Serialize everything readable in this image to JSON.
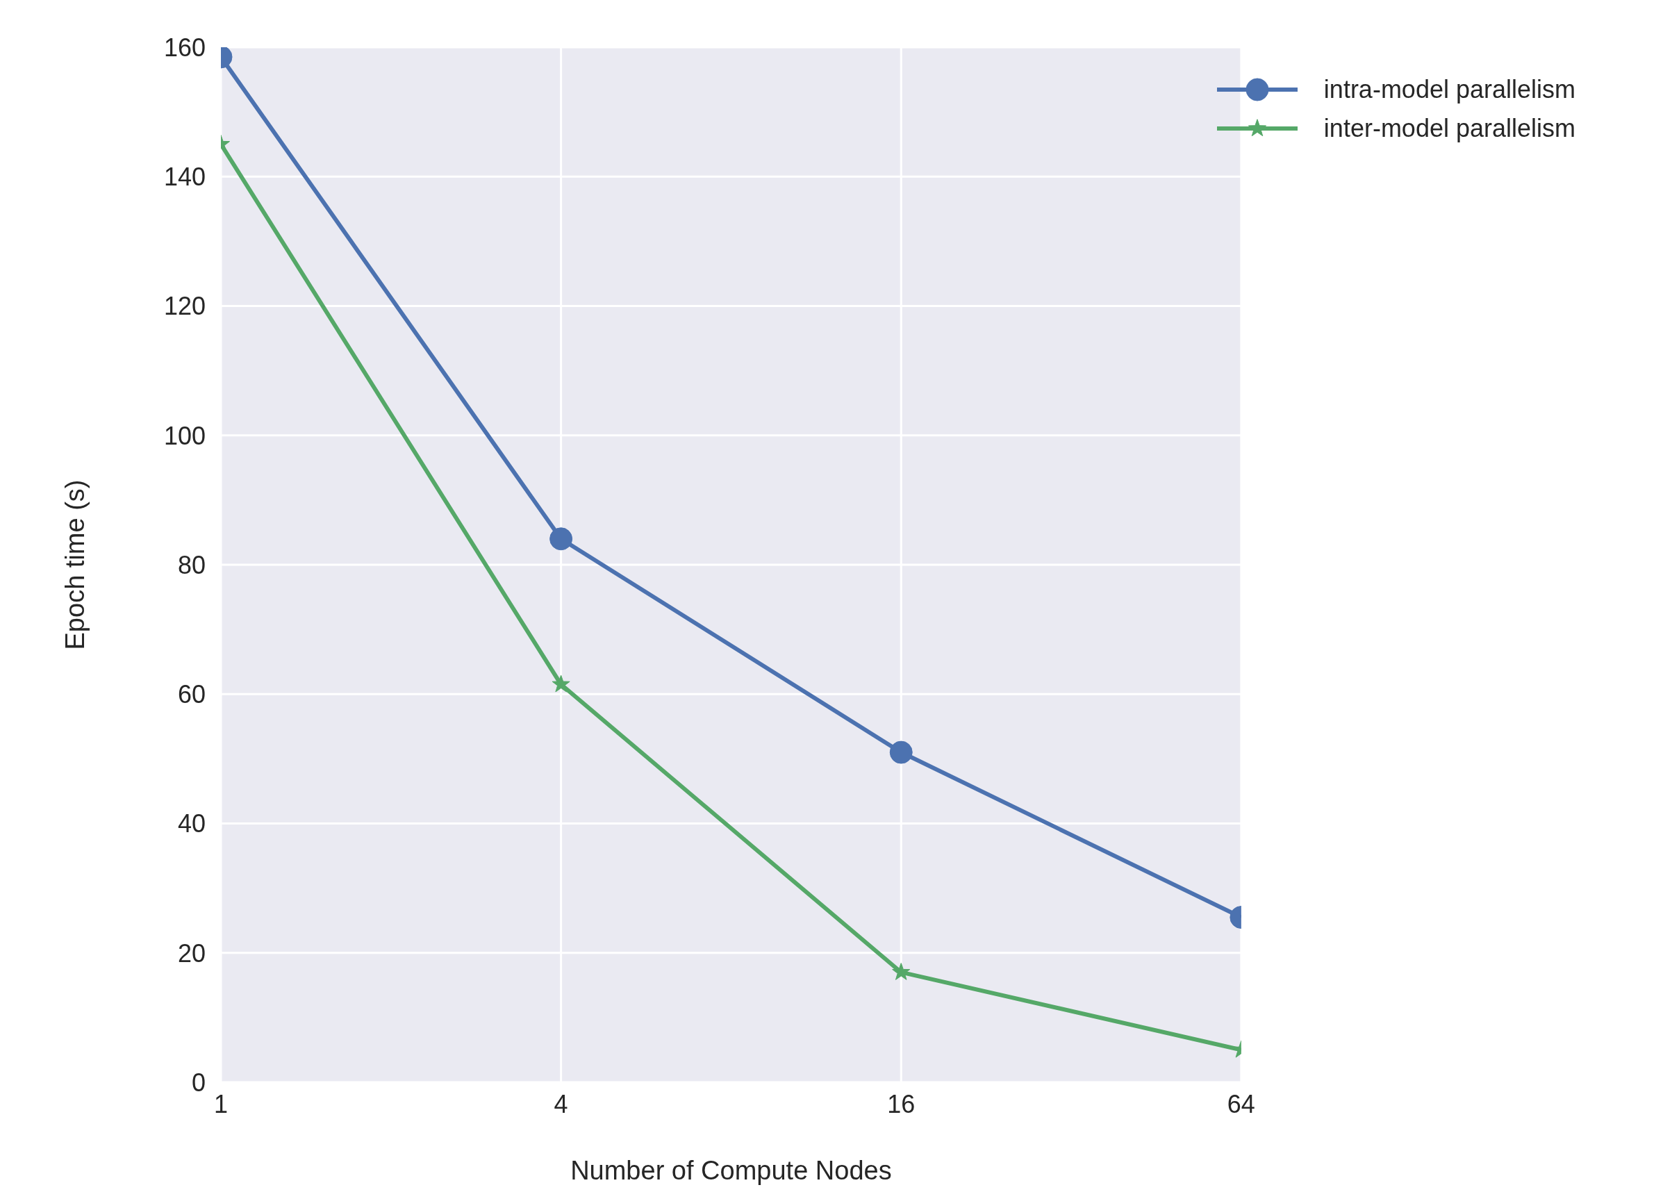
{
  "chart_data": {
    "type": "line",
    "xlabel": "Number of Compute Nodes",
    "ylabel": "Epoch time (s)",
    "x": [
      1,
      4,
      16,
      64
    ],
    "log": "x",
    "xlim": [
      1,
      64
    ],
    "xticks": [
      1,
      4,
      16,
      64
    ],
    "ylim": [
      0,
      160
    ],
    "yticks": [
      0,
      20,
      40,
      60,
      80,
      100,
      120,
      140,
      160
    ],
    "grid": true,
    "legend": "top right",
    "series": [
      {
        "name": "intra-model parallelism",
        "color": "#4c72b0",
        "marker": "circle",
        "values": [
          158.5,
          84,
          51,
          25.5
        ]
      },
      {
        "name": "inter-model parallelism",
        "color": "#55a868",
        "marker": "star",
        "values": [
          145,
          61.5,
          17,
          5
        ]
      }
    ]
  }
}
